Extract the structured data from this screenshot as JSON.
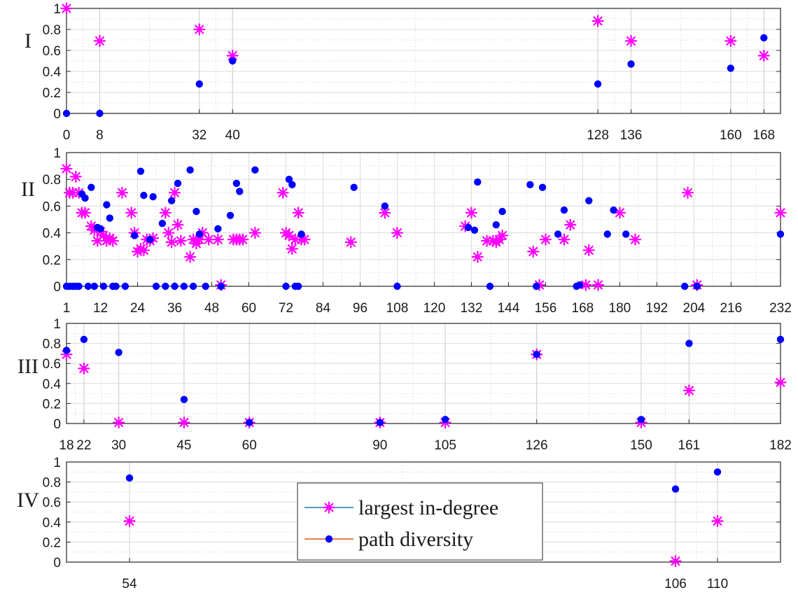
{
  "colors": {
    "largest_in_degree": "#ff00ff",
    "path_diversity": "#0000ff",
    "legend_line_1": "#1f77b4",
    "legend_line_2": "#d95319"
  },
  "legend": {
    "items": [
      {
        "label": "largest in-degree",
        "marker": "asterisk",
        "color": "#ff00ff"
      },
      {
        "label": "path diversity",
        "marker": "dot",
        "color": "#0000ff"
      }
    ],
    "placement": "inside panel IV, center"
  },
  "chart_data": [
    {
      "panel": "I",
      "type": "scatter",
      "ylim": [
        0,
        1
      ],
      "yticks": [
        0,
        0.2,
        0.4,
        0.6,
        0.8,
        1
      ],
      "xlim": [
        0,
        172
      ],
      "xticks": [
        0,
        8,
        32,
        40,
        128,
        136,
        160,
        168
      ],
      "grid": true,
      "stems": true,
      "series": [
        {
          "name": "largest in-degree",
          "marker": "asterisk",
          "x": [
            0,
            8,
            32,
            40,
            128,
            136,
            160,
            168
          ],
          "y": [
            1.0,
            0.69,
            0.8,
            0.55,
            0.88,
            0.69,
            0.69,
            0.55
          ]
        },
        {
          "name": "path diversity",
          "marker": "dot",
          "x": [
            0,
            8,
            32,
            40,
            128,
            136,
            160,
            168
          ],
          "y": [
            0.0,
            0.0,
            0.28,
            0.5,
            0.28,
            0.47,
            0.43,
            0.72
          ]
        }
      ]
    },
    {
      "panel": "II",
      "type": "scatter",
      "ylim": [
        0,
        1
      ],
      "yticks": [
        0,
        0.2,
        0.4,
        0.6,
        0.8,
        1
      ],
      "xlim": [
        1,
        232
      ],
      "xticks": [
        1,
        12,
        24,
        36,
        48,
        60,
        72,
        84,
        96,
        108,
        120,
        132,
        144,
        156,
        168,
        180,
        192,
        204,
        216,
        232
      ],
      "grid": true,
      "stems": false,
      "series": [
        {
          "name": "largest in-degree",
          "marker": "asterisk",
          "x": [
            1,
            2,
            3,
            4,
            5,
            6,
            7,
            9,
            10,
            11,
            12,
            13,
            14,
            15,
            16,
            19,
            22,
            23,
            24,
            25,
            26,
            27,
            28,
            29,
            33,
            34,
            35,
            36,
            37,
            38,
            41,
            42,
            43,
            44,
            45,
            47,
            50,
            51,
            55,
            56,
            57,
            58,
            62,
            71,
            72,
            73,
            74,
            75,
            76,
            77,
            78,
            93,
            104,
            108,
            130,
            132,
            134,
            137,
            139,
            140,
            141,
            142,
            152,
            154,
            156,
            162,
            164,
            169,
            170,
            173,
            180,
            185,
            202,
            205,
            232
          ],
          "y": [
            0.88,
            0.7,
            0.7,
            0.82,
            0.7,
            0.55,
            0.55,
            0.45,
            0.42,
            0.34,
            0.41,
            0.38,
            0.34,
            0.36,
            0.34,
            0.7,
            0.55,
            0.4,
            0.26,
            0.28,
            0.27,
            0.35,
            0.34,
            0.36,
            0.55,
            0.4,
            0.33,
            0.7,
            0.46,
            0.34,
            0.22,
            0.35,
            0.32,
            0.35,
            0.4,
            0.35,
            0.35,
            0.01,
            0.35,
            0.35,
            0.35,
            0.35,
            0.4,
            0.7,
            0.4,
            0.38,
            0.28,
            0.35,
            0.55,
            0.35,
            0.35,
            0.33,
            0.55,
            0.4,
            0.45,
            0.55,
            0.22,
            0.34,
            0.34,
            0.33,
            0.35,
            0.38,
            0.26,
            0.01,
            0.35,
            0.35,
            0.46,
            0.01,
            0.27,
            0.01,
            0.55,
            0.35,
            0.7,
            0.01,
            0.55
          ]
        },
        {
          "name": "path diversity",
          "marker": "dot",
          "x": [
            1,
            2,
            3,
            4,
            5,
            6,
            7,
            8,
            9,
            10,
            11,
            12,
            13,
            14,
            15,
            16,
            17,
            20,
            23,
            25,
            26,
            28,
            29,
            30,
            32,
            33,
            35,
            36,
            37,
            39,
            41,
            42,
            43,
            44,
            46,
            50,
            51,
            54,
            56,
            57,
            62,
            72,
            73,
            74,
            75,
            76,
            77,
            94,
            104,
            108,
            131,
            133,
            134,
            138,
            140,
            142,
            151,
            153,
            155,
            160,
            162,
            166,
            167,
            170,
            176,
            178,
            182,
            201,
            205,
            232
          ],
          "y": [
            0.0,
            0.0,
            0.0,
            0.0,
            0.0,
            0.69,
            0.66,
            0.0,
            0.74,
            0.0,
            0.44,
            0.43,
            0.0,
            0.61,
            0.51,
            0.0,
            0.0,
            0.0,
            0.38,
            0.86,
            0.68,
            0.35,
            0.67,
            0.0,
            0.47,
            0.0,
            0.64,
            0.0,
            0.77,
            0.0,
            0.87,
            0.0,
            0.56,
            0.39,
            0.0,
            0.43,
            0.0,
            0.53,
            0.77,
            0.71,
            0.87,
            0.0,
            0.8,
            0.76,
            0.0,
            0.0,
            0.39,
            0.74,
            0.6,
            0.0,
            0.44,
            0.42,
            0.78,
            0.0,
            0.46,
            0.56,
            0.76,
            0.0,
            0.74,
            0.39,
            0.57,
            0.0,
            0.01,
            0.64,
            0.39,
            0.57,
            0.39,
            0.0,
            0.0,
            0.39
          ]
        }
      ]
    },
    {
      "panel": "III",
      "type": "scatter",
      "ylim": [
        0,
        1
      ],
      "yticks": [
        0,
        0.2,
        0.4,
        0.6,
        0.8,
        1
      ],
      "xlim": [
        18,
        182
      ],
      "xticks": [
        18,
        22,
        30,
        45,
        60,
        90,
        105,
        126,
        150,
        161,
        182
      ],
      "grid": true,
      "stems": true,
      "series": [
        {
          "name": "largest in-degree",
          "marker": "asterisk",
          "x": [
            18,
            22,
            30,
            45,
            60,
            90,
            105,
            126,
            150,
            161,
            182
          ],
          "y": [
            0.69,
            0.55,
            0.01,
            0.01,
            0.01,
            0.01,
            0.01,
            0.69,
            0.01,
            0.33,
            0.41
          ]
        },
        {
          "name": "path diversity",
          "marker": "dot",
          "x": [
            18,
            22,
            30,
            45,
            60,
            90,
            105,
            126,
            150,
            161,
            182
          ],
          "y": [
            0.73,
            0.84,
            0.71,
            0.24,
            0.01,
            0.01,
            0.04,
            0.69,
            0.04,
            0.8,
            0.84
          ]
        }
      ]
    },
    {
      "panel": "IV",
      "type": "scatter",
      "ylim": [
        0,
        1
      ],
      "yticks": [
        0,
        0.2,
        0.4,
        0.6,
        0.8,
        1
      ],
      "xlim": [
        48,
        116
      ],
      "xticks": [
        54,
        106,
        110
      ],
      "grid": true,
      "stems": true,
      "series": [
        {
          "name": "largest in-degree",
          "marker": "asterisk",
          "x": [
            54,
            106,
            110
          ],
          "y": [
            0.41,
            0.01,
            0.41
          ]
        },
        {
          "name": "path diversity",
          "marker": "dot",
          "x": [
            54,
            106,
            110
          ],
          "y": [
            0.84,
            0.73,
            0.9
          ]
        }
      ]
    }
  ]
}
